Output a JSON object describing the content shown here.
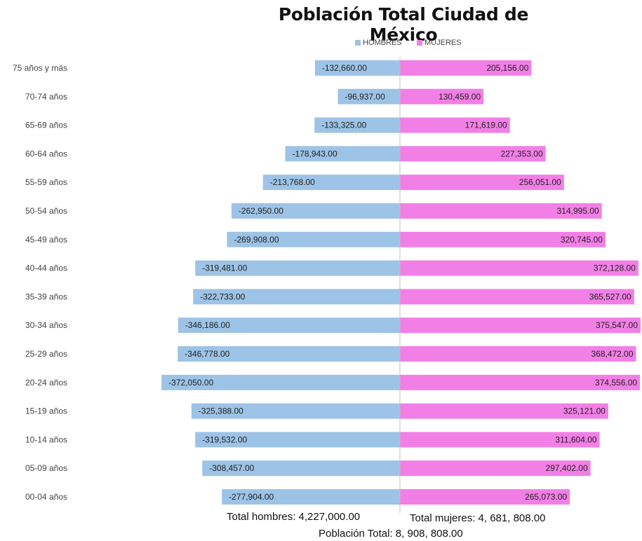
{
  "chart_data": {
    "type": "bar",
    "orientation": "horizontal",
    "title": "Población Total Ciudad de México",
    "categories": [
      "75 años y más",
      "70-74 años",
      "65-69 años",
      "60-64 años",
      "55-59 años",
      "50-54 años",
      "45-49 años",
      "40-44 años",
      "35-39 años",
      "30-34 años",
      "25-29 años",
      "20-24 años",
      "15-19 años",
      "10-14 años",
      "05-09 años",
      "00-04 años"
    ],
    "series": [
      {
        "name": "HOMBRES",
        "color": "#9dc3e6",
        "values": [
          -132660,
          -96937,
          -133325,
          -178943,
          -213768,
          -262950,
          -269908,
          -319481,
          -322733,
          -346186,
          -346778,
          -372050,
          -325388,
          -319532,
          -308457,
          -277904
        ],
        "labels": [
          "-132,660.00",
          "-96,937.00",
          "-133,325.00",
          "-178,943.00",
          "-213,768.00",
          "-262,950.00",
          "-269,908.00",
          "-319,481.00",
          "-322,733.00",
          "-346,186.00",
          "-346,778.00",
          "-372,050.00",
          "-325,388.00",
          "-319,532.00",
          "-308,457.00",
          "-277,904.00"
        ]
      },
      {
        "name": "MUJERES",
        "color": "#f27fe6",
        "values": [
          205156,
          130459,
          171619,
          227353,
          256051,
          314995,
          320745,
          372128,
          365527,
          375547,
          368472,
          374556,
          325121,
          311604,
          297402,
          265073
        ],
        "labels": [
          "205,156.00",
          "130,459.00",
          "171,619.00",
          "227,353.00",
          "256,051.00",
          "314,995.00",
          "320,745.00",
          "372,128.00",
          "365,527.00",
          "375,547.00",
          "368,472.00",
          "374,556.00",
          "325,121.00",
          "311,604.00",
          "297,402.00",
          "265,073.00"
        ]
      }
    ],
    "legend_position": "top",
    "grid": false
  },
  "totals": {
    "men": "Total hombres: 4,227,000.00",
    "women": "Total mujeres: 4, 681, 808.00",
    "overall": "Población Total: 8, 908, 808.00"
  }
}
